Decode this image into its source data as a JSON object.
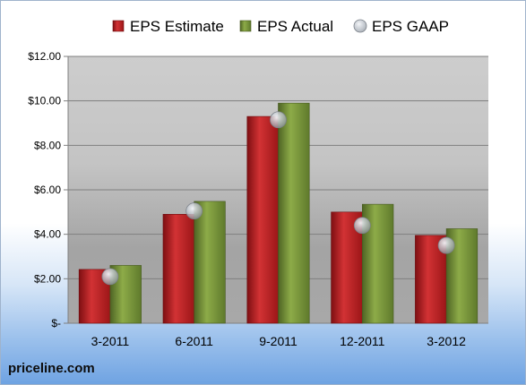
{
  "brand": "priceline.com",
  "colors": {
    "estimate": "#c0282a",
    "actual": "#78953a",
    "gaap": "#b9bfc7",
    "plot_top": "#c9c9c9",
    "plot_mid": "#a9a9a9"
  },
  "chart_data": {
    "type": "bar",
    "title": "",
    "xlabel": "",
    "ylabel": "",
    "categories": [
      "3-2011",
      "6-2011",
      "9-2011",
      "12-2011",
      "3-2012"
    ],
    "series": [
      {
        "name": "EPS Estimate",
        "kind": "bar",
        "values": [
          2.42,
          4.9,
          9.3,
          5.0,
          3.95
        ]
      },
      {
        "name": "EPS Actual",
        "kind": "bar",
        "values": [
          2.6,
          5.48,
          9.9,
          5.35,
          4.25
        ]
      },
      {
        "name": "EPS GAAP",
        "kind": "marker",
        "values": [
          2.1,
          5.05,
          9.15,
          4.4,
          3.5
        ]
      }
    ],
    "yticks": [
      0,
      2,
      4,
      6,
      8,
      10,
      12
    ],
    "ytick_labels": [
      "$-",
      "$2.00",
      "$4.00",
      "$6.00",
      "$8.00",
      "$10.00",
      "$12.00"
    ],
    "ylim": [
      0,
      12
    ],
    "grid": true,
    "legend": "top"
  }
}
